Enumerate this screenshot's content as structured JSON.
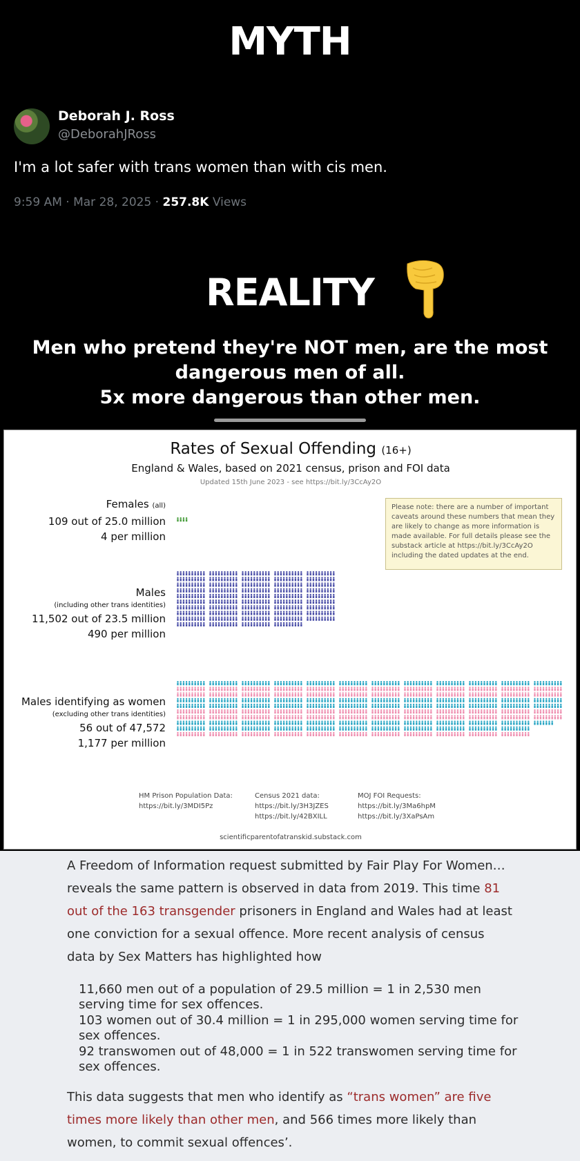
{
  "myth_heading": "MYTH",
  "tweet": {
    "author": "Deborah J. Ross",
    "handle": "@DeborahJRoss",
    "text": "I'm a lot safer with trans women than with cis men.",
    "time": "9:59 AM · Mar 28, 2025 · ",
    "views_count": "257.8K",
    "views_label": " Views"
  },
  "reality_heading": "REALITY",
  "pointer_icon": "backhand-index-pointing-down",
  "claim": {
    "line1": "Men who pretend they're NOT men, are the most",
    "line2": "dangerous men of all.",
    "line3": "5x more dangerous than other men."
  },
  "chart_data": {
    "type": "pictogram",
    "title": "Rates of Sexual Offending",
    "title_suffix": "(16+)",
    "subtitle": "England & Wales, based on 2021 census, prison and FOI data",
    "updated": "Updated 15th June 2023 - see https://bit.ly/3CcAy2O",
    "groups": [
      {
        "name": "Females",
        "qualifier": "(all)",
        "count_text": "109 out of 25.0 million",
        "rate_text": "4 per million",
        "rate_per_million": 4,
        "color": "#4a9e3f"
      },
      {
        "name": "Males",
        "qualifier": "(including other trans identities)",
        "count_text": "11,502 out of 23.5 million",
        "rate_text": "490 per million",
        "rate_per_million": 490,
        "color": "#4b4fa8"
      },
      {
        "name": "Males identifying as women",
        "qualifier": "(excluding other trans identities)",
        "count_text": "56 out of 47,572",
        "rate_text": "1,177 per million",
        "rate_per_million": 1177,
        "colors": [
          "#2aa6c4",
          "#ef8fb0"
        ]
      }
    ],
    "note": "Please note: there are a number of important caveats around these numbers that mean they are likely to change as more information is made available. For full details please see the substack article at https://bit.ly/3CcAy2O including the dated updates at the end.",
    "sources": [
      {
        "label": "HM Prison Population Data:",
        "links": [
          "https://bit.ly/3MDI5Pz"
        ]
      },
      {
        "label": "Census 2021 data:",
        "links": [
          "https://bit.ly/3H3JZES",
          "https://bit.ly/42BXILL"
        ]
      },
      {
        "label": "MOJ FOI Requests:",
        "links": [
          "https://bit.ly/3Ma6hpM",
          "https://bit.ly/3XaPsAm"
        ]
      }
    ],
    "site": "scientificparentofatranskid.substack.com"
  },
  "article": {
    "p1_a": "A Freedom of Information request submitted by Fair Play For Women… reveals the same pattern is observed in data from 2019. This time ",
    "p1_link": "81 out of the 163 transgender",
    "p1_b": " prisoners in England and Wales had at least one conviction for a sexual offence. More recent analysis of census data by Sex Matters has highlighted how",
    "q1": "11,660 men out of a population of 29.5 million = 1 in 2,530 men serving time for sex offences.",
    "q2": "103 women out of 30.4 million = 1 in 295,000 women serving time for sex offences.",
    "q3": "92 transwomen out of 48,000 = 1 in 522 transwomen serving time for sex offences.",
    "p2_a": "This data suggests that men who identify as ",
    "p2_link": "“trans women” are five times more likely than other men",
    "p2_b": ", and 566 times more likely than women, to commit sexual offences’."
  },
  "colors": {
    "link_red": "#9c2a2a",
    "female_green": "#4a9e3f",
    "male_navy": "#4b4fa8",
    "trans_blue": "#2aa6c4",
    "trans_pink": "#ef8fb0"
  }
}
